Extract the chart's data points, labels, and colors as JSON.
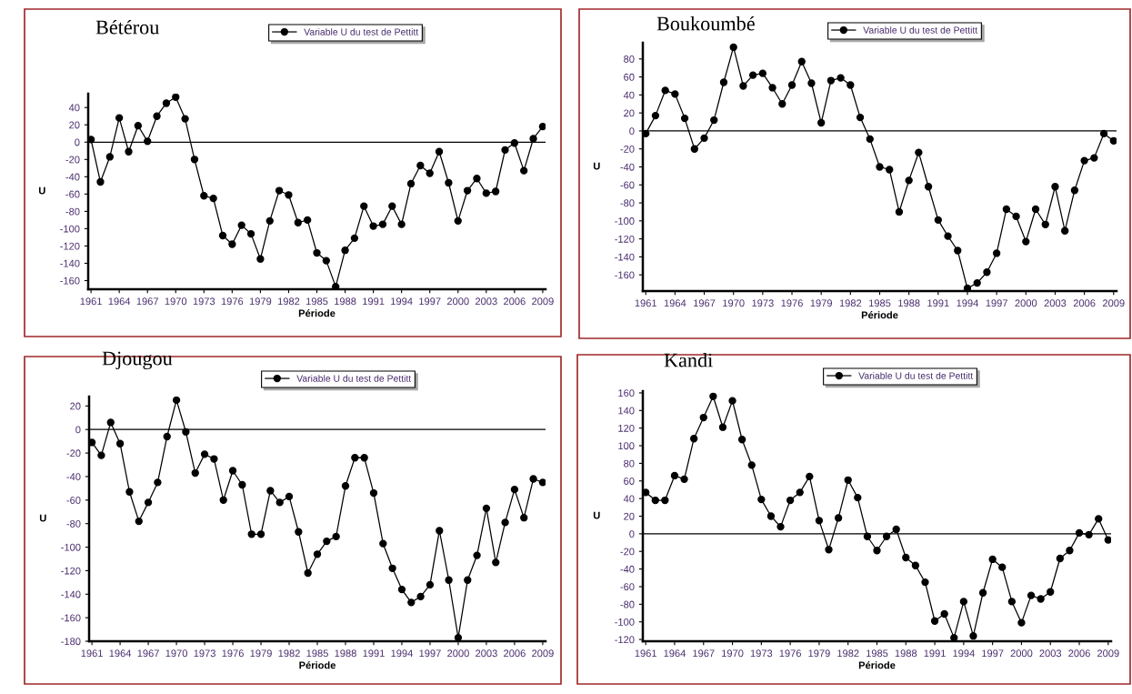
{
  "chart_data": [
    {
      "type": "line",
      "title": "Bétérou",
      "xlabel": "Période",
      "ylabel": "U",
      "x": [
        1961,
        1962,
        1963,
        1964,
        1965,
        1966,
        1967,
        1968,
        1969,
        1970,
        1971,
        1972,
        1973,
        1974,
        1975,
        1976,
        1977,
        1978,
        1979,
        1980,
        1981,
        1982,
        1983,
        1984,
        1985,
        1986,
        1987,
        1988,
        1989,
        1990,
        1991,
        1992,
        1993,
        1994,
        1995,
        1996,
        1997,
        1998,
        1999,
        2000,
        2001,
        2002,
        2003,
        2004,
        2005,
        2006,
        2007,
        2008,
        2009
      ],
      "series": [
        {
          "name": "Variable U du test de Pettitt",
          "color": "#000000",
          "values": [
            3,
            -46,
            -17,
            28,
            -11,
            19,
            1,
            30,
            45,
            52,
            27,
            -20,
            -62,
            -65,
            -108,
            -118,
            -96,
            -106,
            -135,
            -91,
            -56,
            -61,
            -93,
            -90,
            -128,
            -137,
            -167,
            -125,
            -111,
            -74,
            -97,
            -95,
            -74,
            -95,
            -48,
            -27,
            -36,
            -11,
            -47,
            -91,
            -56,
            -42,
            -59,
            -57,
            -9,
            -1,
            -33,
            4,
            18
          ]
        }
      ],
      "xlim": [
        1960.7,
        2009.3
      ],
      "xticks": [
        1961,
        1964,
        1967,
        1970,
        1973,
        1976,
        1979,
        1982,
        1985,
        1988,
        1991,
        1994,
        1997,
        2000,
        2003,
        2006,
        2009
      ],
      "ylim": [
        -170,
        56
      ],
      "yticks": [
        -160,
        -140,
        -120,
        -100,
        -80,
        -60,
        -40,
        -20,
        0,
        20,
        40
      ],
      "ref_lines": [
        {
          "axis": "y",
          "value": 0,
          "color": "#000000"
        }
      ],
      "grid": false,
      "legend": "top",
      "marker": "circle",
      "line_style": "solid"
    },
    {
      "type": "line",
      "title": "Boukoumbé",
      "xlabel": "Période",
      "ylabel": "U",
      "x": [
        1961,
        1962,
        1963,
        1964,
        1965,
        1966,
        1967,
        1968,
        1969,
        1970,
        1971,
        1972,
        1973,
        1974,
        1975,
        1976,
        1977,
        1978,
        1979,
        1980,
        1981,
        1982,
        1983,
        1984,
        1985,
        1986,
        1987,
        1988,
        1989,
        1990,
        1991,
        1992,
        1993,
        1994,
        1995,
        1996,
        1997,
        1998,
        1999,
        2000,
        2001,
        2002,
        2003,
        2004,
        2005,
        2006,
        2007,
        2008,
        2009
      ],
      "series": [
        {
          "name": "Variable U du test de Pettitt",
          "color": "#000000",
          "values": [
            -3,
            17,
            45,
            41,
            14,
            -20,
            -8,
            12,
            54,
            93,
            50,
            62,
            64,
            48,
            30,
            51,
            77,
            53,
            9,
            56,
            59,
            51,
            15,
            -9,
            -40,
            -43,
            -90,
            -55,
            -24,
            -62,
            -99,
            -117,
            -133,
            -175,
            -169,
            -157,
            -136,
            -87,
            -95,
            -123,
            -87,
            -104,
            -62,
            -111,
            -66,
            -33,
            -30,
            -3,
            -11
          ]
        }
      ],
      "xlim": [
        1960.7,
        2009.3
      ],
      "xticks": [
        1961,
        1964,
        1967,
        1970,
        1973,
        1976,
        1979,
        1982,
        1985,
        1988,
        1991,
        1994,
        1997,
        2000,
        2003,
        2006,
        2009
      ],
      "ylim": [
        -178,
        98
      ],
      "yticks": [
        -160,
        -140,
        -120,
        -100,
        -80,
        -60,
        -40,
        -20,
        0,
        20,
        40,
        60,
        80
      ],
      "ref_lines": [
        {
          "axis": "y",
          "value": 0,
          "color": "#000000"
        }
      ],
      "grid": false,
      "legend": "top",
      "marker": "circle",
      "line_style": "solid"
    },
    {
      "type": "line",
      "title": "Djougou",
      "xlabel": "Période",
      "ylabel": "U",
      "x": [
        1961,
        1962,
        1963,
        1964,
        1965,
        1966,
        1967,
        1968,
        1969,
        1970,
        1971,
        1972,
        1973,
        1974,
        1975,
        1976,
        1977,
        1978,
        1979,
        1980,
        1981,
        1982,
        1983,
        1984,
        1985,
        1986,
        1987,
        1988,
        1989,
        1990,
        1991,
        1992,
        1993,
        1994,
        1995,
        1996,
        1997,
        1998,
        1999,
        2000,
        2001,
        2002,
        2003,
        2004,
        2005,
        2006,
        2007,
        2008,
        2009
      ],
      "series": [
        {
          "name": "Variable U du test de Pettitt",
          "color": "#000000",
          "values": [
            -11,
            -22,
            6,
            -12,
            -53,
            -78,
            -62,
            -45,
            -6,
            25,
            -2,
            -37,
            -21,
            -25,
            -60,
            -35,
            -47,
            -89,
            -89,
            -52,
            -62,
            -57,
            -87,
            -122,
            -106,
            -95,
            -91,
            -48,
            -24,
            -24,
            -54,
            -97,
            -118,
            -136,
            -147,
            -142,
            -132,
            -86,
            -128,
            -177,
            -128,
            -107,
            -67,
            -113,
            -79,
            -51,
            -75,
            -42,
            -45
          ]
        }
      ],
      "xlim": [
        1960.7,
        2009.3
      ],
      "xticks": [
        1961,
        1964,
        1967,
        1970,
        1973,
        1976,
        1979,
        1982,
        1985,
        1988,
        1991,
        1994,
        1997,
        2000,
        2003,
        2006,
        2009
      ],
      "ylim": [
        -180,
        28
      ],
      "yticks": [
        -180,
        -160,
        -140,
        -120,
        -100,
        -80,
        -60,
        -40,
        -20,
        0,
        20
      ],
      "ref_lines": [
        {
          "axis": "y",
          "value": 0,
          "color": "#000000"
        }
      ],
      "grid": false,
      "legend": "top",
      "marker": "circle",
      "line_style": "solid"
    },
    {
      "type": "line",
      "title": "Kandi",
      "xlabel": "Période",
      "ylabel": "U",
      "x": [
        1961,
        1962,
        1963,
        1964,
        1965,
        1966,
        1967,
        1968,
        1969,
        1970,
        1971,
        1972,
        1973,
        1974,
        1975,
        1976,
        1977,
        1978,
        1979,
        1980,
        1981,
        1982,
        1983,
        1984,
        1985,
        1986,
        1987,
        1988,
        1989,
        1990,
        1991,
        1992,
        1993,
        1994,
        1995,
        1996,
        1997,
        1998,
        1999,
        2000,
        2001,
        2002,
        2003,
        2004,
        2005,
        2006,
        2007,
        2008,
        2009
      ],
      "series": [
        {
          "name": "Variable U du test de Pettitt",
          "color": "#000000",
          "values": [
            47,
            38,
            38,
            66,
            62,
            108,
            132,
            156,
            121,
            151,
            107,
            78,
            39,
            20,
            8,
            38,
            47,
            65,
            15,
            -18,
            18,
            61,
            41,
            -3,
            -19,
            -3,
            5,
            -27,
            -36,
            -55,
            -99,
            -91,
            -118,
            -77,
            -116,
            -67,
            -29,
            -38,
            -77,
            -101,
            -70,
            -74,
            -66,
            -28,
            -19,
            1,
            -1,
            17,
            -7
          ]
        }
      ],
      "xlim": [
        1960.7,
        2009.3
      ],
      "xticks": [
        1961,
        1964,
        1967,
        1970,
        1973,
        1976,
        1979,
        1982,
        1985,
        1988,
        1991,
        1994,
        1997,
        2000,
        2003,
        2006,
        2009
      ],
      "ylim": [
        -122,
        162
      ],
      "yticks": [
        -120,
        -100,
        -80,
        -60,
        -40,
        -20,
        0,
        20,
        40,
        60,
        80,
        100,
        120,
        140,
        160
      ],
      "ref_lines": [
        {
          "axis": "y",
          "value": 0,
          "color": "#000000"
        }
      ],
      "grid": false,
      "legend": "top",
      "marker": "circle",
      "line_style": "solid"
    }
  ]
}
